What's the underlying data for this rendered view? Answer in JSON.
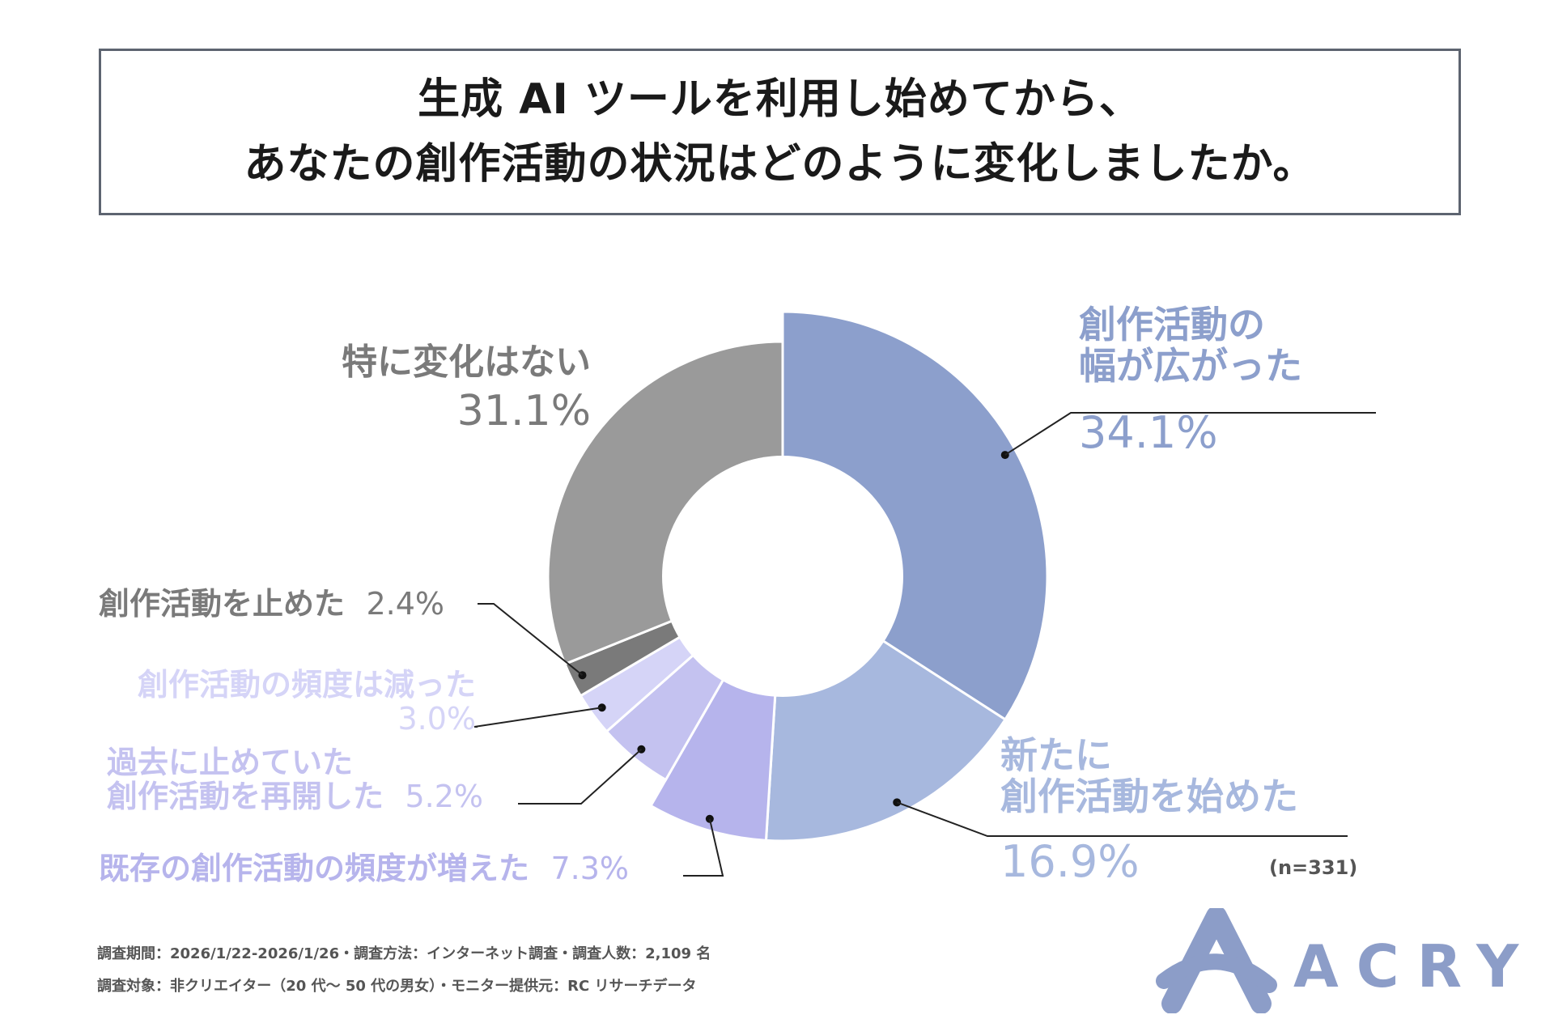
{
  "title": {
    "line1": "生成 AI ツールを利用し始めてから、",
    "line2": "あなたの創作活動の状況はどのように変化しましたか。"
  },
  "chart_data": {
    "type": "pie",
    "donut": true,
    "sample_size": "(n=331)",
    "slices": [
      {
        "label_lines": [
          "創作活動の",
          "幅が広がった"
        ],
        "value": 34.1,
        "value_text": "34.1%",
        "color": "#8c9fcc"
      },
      {
        "label_lines": [
          "新たに",
          "創作活動を始めた"
        ],
        "value": 16.9,
        "value_text": "16.9%",
        "color": "#a7b8de"
      },
      {
        "label_lines": [
          "既存の創作活動の頻度が増えた"
        ],
        "value": 7.3,
        "value_text": "7.3%",
        "color": "#b6b4ec"
      },
      {
        "label_lines": [
          "過去に止めていた",
          "創作活動を再開した"
        ],
        "value": 5.2,
        "value_text": "5.2%",
        "color": "#c4c2f0"
      },
      {
        "label_lines": [
          "創作活動の頻度は減った"
        ],
        "value": 3.0,
        "value_text": "3.0%",
        "color": "#d5d4f7"
      },
      {
        "label_lines": [
          "創作活動を止めた"
        ],
        "value": 2.4,
        "value_text": "2.4%",
        "color": "#7a7a7a"
      },
      {
        "label_lines": [
          "特に変化はない"
        ],
        "value": 31.1,
        "value_text": "31.1%",
        "color": "#9a9a9a"
      }
    ]
  },
  "footer": {
    "note1": "調査期間：2026/1/22-2026/1/26・調査方法：インターネット調査・調査人数：2,109 名",
    "note2": "調査対象：非クリエイター（20 代～ 50 代の男女）・モニター提供元：RC リサーチデータ"
  },
  "brand": {
    "name": "ACRY",
    "color": "#8c9dc8"
  }
}
